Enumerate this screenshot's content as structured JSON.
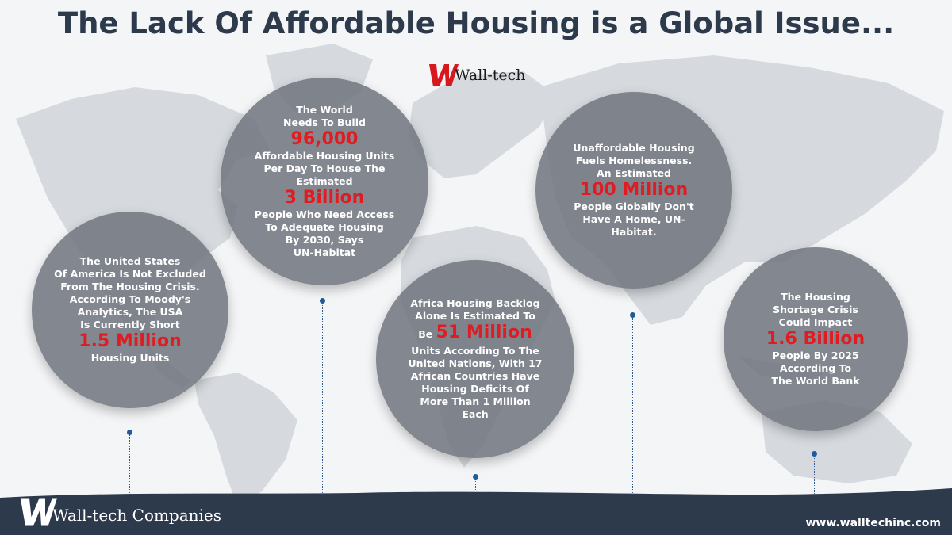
{
  "title": "The Lack Of Affordable Housing is a Global Issue...",
  "brand": {
    "name": "Wall-tech",
    "logo_color": "#d7191f"
  },
  "bubbles": [
    {
      "id": "usa",
      "pre": "The United States\nOf America Is Not Excluded\nFrom The Housing Crisis.\nAccording To Moody's\nAnalytics, The USA\nIs Currently Short",
      "figure": "1.5 Million",
      "post": "Housing Units"
    },
    {
      "id": "world",
      "pre": "The World\nNeeds To Build",
      "figure": "96,000",
      "mid": "Affordable Housing Units\nPer Day To House The\nEstimated",
      "figure2": "3 Billion",
      "post": "People Who Need Access\nTo Adequate Housing\nBy 2030, Says\nUN-Habitat"
    },
    {
      "id": "africa",
      "pre": "Africa Housing Backlog\nAlone Is Estimated To",
      "lead": "Be",
      "figure": "51 Million",
      "post": "Units According  To The\nUnited Nations, With 17\nAfrican Countries Have\nHousing Deficits Of\nMore Than 1 Million\nEach"
    },
    {
      "id": "homeless",
      "pre": "Unaffordable Housing\nFuels Homelessness.\nAn Estimated",
      "figure": "100 Million",
      "post": "People Globally Don't\nHave A Home, UN-\nHabitat."
    },
    {
      "id": "shortage",
      "pre": "The Housing\nShortage Crisis\nCould Impact",
      "figure": "1.6 Billion",
      "post": "People By 2025\nAccording To\nThe World Bank"
    }
  ],
  "footer": {
    "company": "Wall-tech Companies",
    "url": "www.walltechinc.com",
    "bar_color": "#2d3a4b"
  },
  "colors": {
    "highlight": "#e01b22",
    "bubble": "#6c727c",
    "map": "#d3d7dc"
  }
}
